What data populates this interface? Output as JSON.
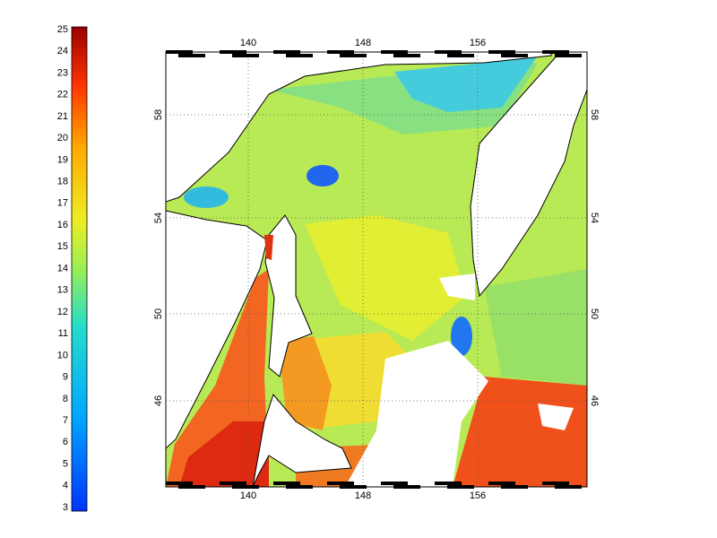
{
  "colorbar": {
    "ticks": [
      3,
      4,
      5,
      6,
      7,
      8,
      9,
      10,
      11,
      12,
      13,
      14,
      15,
      16,
      17,
      18,
      19,
      20,
      21,
      22,
      23,
      24,
      25
    ]
  },
  "map": {
    "lon_ticks": [
      140,
      148,
      156
    ],
    "lat_ticks": [
      46,
      50,
      54,
      58
    ]
  }
}
